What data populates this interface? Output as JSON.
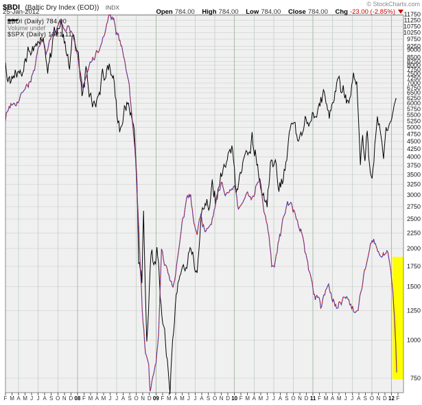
{
  "header": {
    "symbol": "$BDI",
    "name": "(Baltic Dry Index (EOD))",
    "exchange": "INDX",
    "date": "25-Jan-2012",
    "copyright": "© StockCharts.com",
    "quote": {
      "open_label": "Open",
      "open": "784.00",
      "high_label": "High",
      "high": "784.00",
      "low_label": "Low",
      "low": "784.00",
      "close_label": "Close",
      "close": "784.00",
      "chg_label": "Chg",
      "chg": "-23.00 (-2.85%)",
      "chg_direction": "down"
    }
  },
  "legend": {
    "items": [
      {
        "swatch": "dashed-red-blue",
        "label": "$BDI (Daily) 784.00"
      },
      {
        "swatch": "volume-bars",
        "label": "Volume undef"
      },
      {
        "swatch": "solid-black",
        "label": "$SPX (Daily) 1321.11"
      }
    ]
  },
  "colors": {
    "plot_bg": "#F0F0F0",
    "h_grid": "#DBDBDB",
    "v_grid_quarter": "#C9D4C9",
    "v_grid_year": "#A6BBA6",
    "border": "#878787",
    "band_yellow": "#FFFF00",
    "bdi_red": "#CC2222",
    "bdi_blue": "#3333BB",
    "spx_black": "#000000",
    "axis_text": "#111111",
    "month_text": "#333333",
    "chg_red": "#CC0000"
  },
  "chart_data": {
    "type": "line",
    "title": "$BDI (Baltic Dry Index (EOD)) INDX",
    "date": "25-Jan-2012",
    "y_axis": {
      "side": "right",
      "scale": "log",
      "top_value": 11700,
      "bottom_value": 673,
      "tick_labels": [
        11750,
        11250,
        10750,
        10250,
        9750,
        9250,
        9000,
        8500,
        8250,
        8000,
        7750,
        7500,
        7250,
        7000,
        6750,
        6500,
        6250,
        6000,
        5750,
        5500,
        5250,
        5000,
        4750,
        4500,
        4250,
        4000,
        3750,
        3500,
        3250,
        3000,
        2750,
        2500,
        2250,
        2000,
        1750,
        1500,
        1250,
        1000,
        750
      ]
    },
    "x_axis": {
      "start": "Feb-2007",
      "end": "Feb-2012",
      "month_labels": [
        "F",
        "M",
        "A",
        "M",
        "J",
        "J",
        "A",
        "S",
        "O",
        "N",
        "D",
        "08",
        "F",
        "M",
        "A",
        "M",
        "J",
        "J",
        "A",
        "S",
        "O",
        "N",
        "D",
        "09",
        "F",
        "M",
        "A",
        "M",
        "J",
        "J",
        "A",
        "S",
        "O",
        "N",
        "D",
        "10",
        "F",
        "M",
        "A",
        "M",
        "J",
        "J",
        "A",
        "S",
        "O",
        "N",
        "D",
        "11",
        "F",
        "M",
        "A",
        "M",
        "J",
        "J",
        "A",
        "S",
        "O",
        "N",
        "D",
        "12",
        "F"
      ],
      "quarter_grid_first_index": 2,
      "quarter_grid_step": 3,
      "year_indices": [
        11,
        23,
        35,
        47,
        59
      ]
    },
    "series": [
      {
        "name": "$SPX (Daily)",
        "last_value": 1321.11,
        "style": "solid",
        "colors": [
          "#000000"
        ],
        "hidden_scale": {
          "type": "log",
          "bottom_value": 667,
          "top_value": 1605
        },
        "points": [
          [
            0,
            1438
          ],
          [
            0.85,
            1399
          ],
          [
            1.6,
            1437
          ],
          [
            2.5,
            1471
          ],
          [
            3.3,
            1511
          ],
          [
            4.0,
            1536
          ],
          [
            4.8,
            1492
          ],
          [
            5.5,
            1552
          ],
          [
            6.45,
            1406
          ],
          [
            7.2,
            1497
          ],
          [
            8.25,
            1565
          ],
          [
            9.1,
            1508
          ],
          [
            9.8,
            1407
          ],
          [
            10.3,
            1515
          ],
          [
            11.0,
            1468
          ],
          [
            11.7,
            1310
          ],
          [
            12.3,
            1395
          ],
          [
            13.3,
            1273
          ],
          [
            14.2,
            1370
          ],
          [
            15.6,
            1426
          ],
          [
            16.5,
            1350
          ],
          [
            17.45,
            1214
          ],
          [
            18.3,
            1305
          ],
          [
            19.3,
            1282
          ],
          [
            19.7,
            1255
          ],
          [
            20.1,
            1106
          ],
          [
            20.35,
            899
          ],
          [
            20.85,
            848
          ],
          [
            21.1,
            1005
          ],
          [
            21.6,
            752
          ],
          [
            22.25,
            909
          ],
          [
            22.95,
            903
          ],
          [
            23.15,
            934
          ],
          [
            23.9,
            805
          ],
          [
            24.6,
            735
          ],
          [
            25.15,
            666
          ],
          [
            26.1,
            835
          ],
          [
            27.2,
            920
          ],
          [
            28.35,
            946
          ],
          [
            29.3,
            879
          ],
          [
            30.1,
            1010
          ],
          [
            31.2,
            1030
          ],
          [
            31.6,
            1080
          ],
          [
            32.1,
            1042
          ],
          [
            32.9,
            1110
          ],
          [
            33.9,
            1127
          ],
          [
            34.6,
            1150
          ],
          [
            35.25,
            1057
          ],
          [
            36.4,
            1150
          ],
          [
            37.7,
            1217
          ],
          [
            38.3,
            1170
          ],
          [
            38.9,
            1090
          ],
          [
            40.0,
            1011
          ],
          [
            40.5,
            1125
          ],
          [
            41.25,
            1127
          ],
          [
            41.8,
            1047
          ],
          [
            42.6,
            1090
          ],
          [
            43.4,
            1185
          ],
          [
            44.15,
            1225
          ],
          [
            44.9,
            1180
          ],
          [
            45.95,
            1258
          ],
          [
            47.05,
            1272
          ],
          [
            48.6,
            1343
          ],
          [
            49.5,
            1257
          ],
          [
            50.5,
            1335
          ],
          [
            51.0,
            1370
          ],
          [
            52.0,
            1300
          ],
          [
            52.5,
            1265
          ],
          [
            53.2,
            1354
          ],
          [
            53.7,
            1345
          ],
          [
            54.25,
            1119
          ],
          [
            54.6,
            1200
          ],
          [
            54.95,
            1160
          ],
          [
            55.3,
            1216
          ],
          [
            55.65,
            1136
          ],
          [
            56.05,
            1099
          ],
          [
            56.85,
            1285
          ],
          [
            57.3,
            1220
          ],
          [
            57.8,
            1158
          ],
          [
            58.3,
            1244
          ],
          [
            58.95,
            1258
          ],
          [
            59.3,
            1290
          ],
          [
            59.8,
            1321
          ]
        ]
      },
      {
        "name": "$BDI (Daily)",
        "last_value": 784.0,
        "style": "dashed-two-color",
        "colors": [
          "#CC2222",
          "#3333BB"
        ],
        "points": [
          [
            0,
            5450
          ],
          [
            0.7,
            5900
          ],
          [
            1.5,
            6200
          ],
          [
            2.2,
            6350
          ],
          [
            3,
            6900
          ],
          [
            3.6,
            7100
          ],
          [
            4.3,
            7600
          ],
          [
            5,
            8800
          ],
          [
            5.7,
            9300
          ],
          [
            6.3,
            8700
          ],
          [
            7,
            9750
          ],
          [
            7.7,
            10400
          ],
          [
            8.4,
            11000
          ],
          [
            9,
            10700
          ],
          [
            9.6,
            11150
          ],
          [
            10.3,
            9900
          ],
          [
            11,
            8500
          ],
          [
            11.8,
            6850
          ],
          [
            12.5,
            7400
          ],
          [
            13.2,
            8250
          ],
          [
            13.9,
            8700
          ],
          [
            14.6,
            9200
          ],
          [
            15.3,
            10300
          ],
          [
            15.75,
            11600
          ],
          [
            16.3,
            11200
          ],
          [
            16.9,
            10200
          ],
          [
            17.5,
            9500
          ],
          [
            18.2,
            8500
          ],
          [
            18.8,
            7200
          ],
          [
            19.4,
            5300
          ],
          [
            19.9,
            3900
          ],
          [
            20.4,
            2200
          ],
          [
            20.9,
            1300
          ],
          [
            21.4,
            920
          ],
          [
            21.9,
            800
          ],
          [
            22.1,
            668
          ],
          [
            22.5,
            750
          ],
          [
            23,
            860
          ],
          [
            23.4,
            1050
          ],
          [
            23.85,
            1950
          ],
          [
            24.3,
            1750
          ],
          [
            25,
            1620
          ],
          [
            25.6,
            1500
          ],
          [
            26.3,
            1850
          ],
          [
            27,
            2350
          ],
          [
            27.7,
            2800
          ],
          [
            28.3,
            2970
          ],
          [
            28.8,
            2550
          ],
          [
            29.3,
            2250
          ],
          [
            29.9,
            2650
          ],
          [
            30.5,
            2270
          ],
          [
            31.2,
            2480
          ],
          [
            31.9,
            2640
          ],
          [
            32.5,
            3000
          ],
          [
            33,
            3320
          ],
          [
            33.6,
            3100
          ],
          [
            34.3,
            2980
          ],
          [
            35,
            3150
          ],
          [
            35.6,
            2650
          ],
          [
            36.3,
            2750
          ],
          [
            37,
            2990
          ],
          [
            37.7,
            3010
          ],
          [
            38.4,
            3300
          ],
          [
            38.85,
            3490
          ],
          [
            39.4,
            2800
          ],
          [
            40,
            2420
          ],
          [
            40.7,
            1750
          ],
          [
            41.1,
            1720
          ],
          [
            41.8,
            2100
          ],
          [
            42.4,
            2470
          ],
          [
            43,
            2880
          ],
          [
            43.6,
            2740
          ],
          [
            44.2,
            2680
          ],
          [
            44.9,
            2300
          ],
          [
            45.5,
            2130
          ],
          [
            46.2,
            1800
          ],
          [
            47,
            1480
          ],
          [
            47.6,
            1380
          ],
          [
            48.2,
            1300
          ],
          [
            48.8,
            1450
          ],
          [
            49.4,
            1550
          ],
          [
            50,
            1340
          ],
          [
            50.6,
            1270
          ],
          [
            51.2,
            1320
          ],
          [
            51.9,
            1420
          ],
          [
            52.5,
            1390
          ],
          [
            53.2,
            1270
          ],
          [
            53.9,
            1300
          ],
          [
            54.6,
            1600
          ],
          [
            55.3,
            1880
          ],
          [
            55.9,
            2050
          ],
          [
            56.3,
            2090
          ],
          [
            56.9,
            1950
          ],
          [
            57.5,
            1820
          ],
          [
            58,
            1880
          ],
          [
            58.45,
            1920
          ],
          [
            58.9,
            1700
          ],
          [
            59.2,
            1450
          ],
          [
            59.45,
            1200
          ],
          [
            59.65,
            980
          ],
          [
            59.8,
            784
          ]
        ]
      }
    ],
    "annotations": [
      {
        "type": "highlight-band",
        "color": "#FFFF00",
        "month_from": 59.15,
        "month_to": 61,
        "value_top": 1880,
        "value_bottom": 745
      }
    ]
  }
}
